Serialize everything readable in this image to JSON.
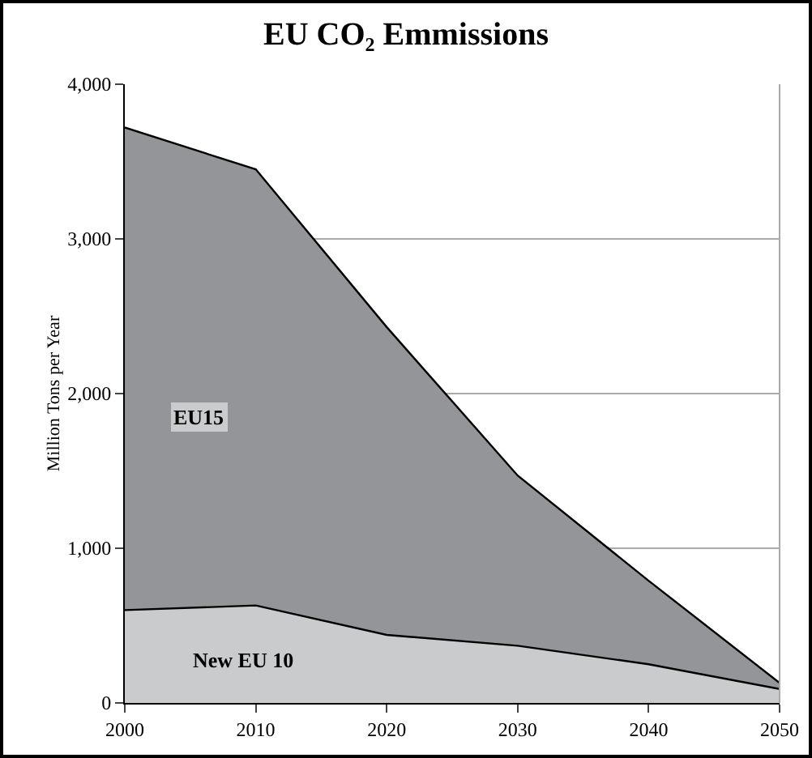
{
  "chart_data": {
    "type": "area",
    "title": "EU CO₂ Emmissions",
    "ylabel": "Million Tons per Year",
    "x": [
      2000,
      2010,
      2020,
      2030,
      2040,
      2050
    ],
    "series": [
      {
        "name": "New EU 10",
        "color": "#cacbcd",
        "values": [
          600,
          630,
          440,
          370,
          250,
          90
        ]
      },
      {
        "name": "EU15",
        "color": "#939598",
        "values": [
          3120,
          2820,
          1990,
          1100,
          540,
          40
        ]
      }
    ],
    "stacked": true,
    "xlim": [
      2000,
      2050
    ],
    "xticks": [
      2000,
      2010,
      2020,
      2030,
      2040,
      2050
    ],
    "ylim": [
      0,
      4000
    ],
    "yticks": [
      {
        "value": 0,
        "label": "0"
      },
      {
        "value": 1000,
        "label": "1,000"
      },
      {
        "value": 2000,
        "label": "2,000"
      },
      {
        "value": 3000,
        "label": "3,000"
      },
      {
        "value": 4000,
        "label": "4,000"
      }
    ],
    "grid": "y",
    "legend": false
  }
}
